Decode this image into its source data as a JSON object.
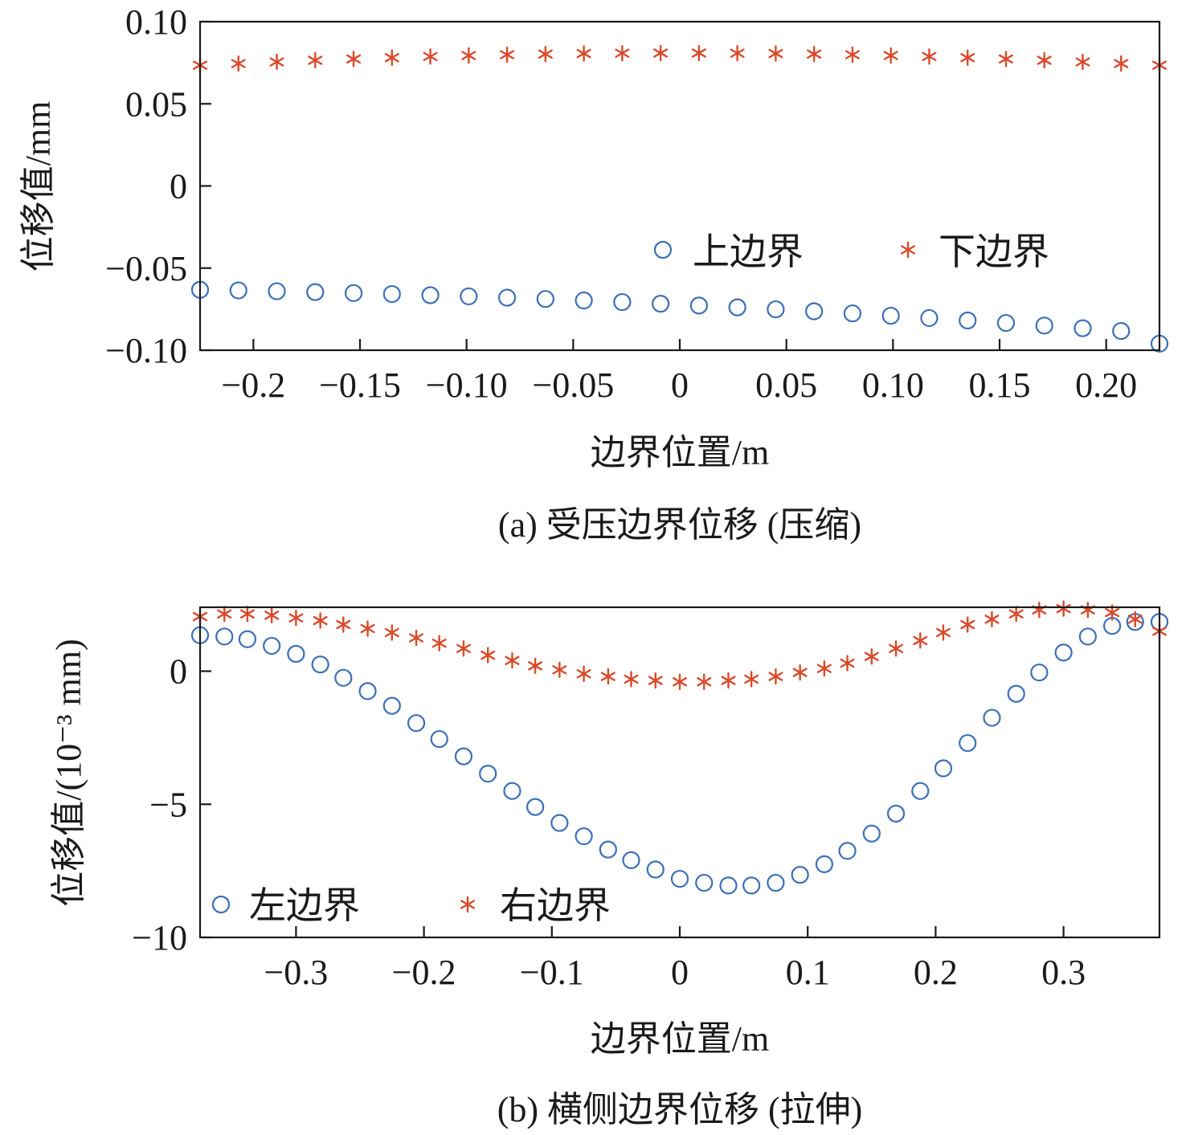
{
  "chart_data": [
    {
      "type": "scatter",
      "caption": "(a) 受压边界位移 (压缩)",
      "xlabel": "边界位置/m",
      "ylabel": "位移值/mm",
      "xlim": [
        -0.225,
        0.225
      ],
      "ylim": [
        -0.1,
        0.1
      ],
      "xticks": [
        -0.2,
        -0.15,
        -0.1,
        -0.05,
        0,
        0.05,
        0.1,
        0.15,
        0.2
      ],
      "xtick_labels": [
        "−0.2",
        "−0.15",
        "−0.10",
        "−0.05",
        "0",
        "0.05",
        "0.10",
        "0.15",
        "0.20"
      ],
      "yticks": [
        0.1,
        0.05,
        0,
        -0.05,
        -0.1
      ],
      "ytick_labels": [
        "0.10",
        "0.05",
        "0",
        "−0.05",
        "−0.10"
      ],
      "legend_position": "center-right",
      "series": [
        {
          "name": "上边界",
          "marker": "circle",
          "color": "#3a6fb7",
          "x": [
            -0.225,
            -0.207,
            -0.189,
            -0.171,
            -0.153,
            -0.135,
            -0.117,
            -0.099,
            -0.081,
            -0.063,
            -0.045,
            -0.027,
            -0.009,
            0.009,
            0.027,
            0.045,
            0.063,
            0.081,
            0.099,
            0.117,
            0.135,
            0.153,
            0.171,
            0.189,
            0.207,
            0.225
          ],
          "values": [
            -0.0632,
            -0.0636,
            -0.0641,
            -0.0646,
            -0.0652,
            -0.0658,
            -0.0665,
            -0.0672,
            -0.068,
            -0.0688,
            -0.0697,
            -0.0707,
            -0.0717,
            -0.0728,
            -0.0739,
            -0.0751,
            -0.0763,
            -0.0776,
            -0.079,
            -0.0804,
            -0.0819,
            -0.0834,
            -0.085,
            -0.0866,
            -0.0883,
            -0.096
          ]
        },
        {
          "name": "下边界",
          "marker": "star",
          "color": "#d9492a",
          "x": [
            -0.225,
            -0.207,
            -0.189,
            -0.171,
            -0.153,
            -0.135,
            -0.117,
            -0.099,
            -0.081,
            -0.063,
            -0.045,
            -0.027,
            -0.009,
            0.009,
            0.027,
            0.045,
            0.063,
            0.081,
            0.099,
            0.117,
            0.135,
            0.153,
            0.171,
            0.189,
            0.207,
            0.225
          ],
          "values": [
            0.0735,
            0.0745,
            0.0755,
            0.0765,
            0.0773,
            0.0781,
            0.0788,
            0.0794,
            0.0799,
            0.0803,
            0.0806,
            0.0808,
            0.0809,
            0.0809,
            0.0808,
            0.0806,
            0.0803,
            0.0799,
            0.0794,
            0.0788,
            0.0781,
            0.0773,
            0.0765,
            0.0755,
            0.0745,
            0.0735
          ]
        }
      ]
    },
    {
      "type": "scatter",
      "caption": "(b) 横侧边界位移 (拉伸)",
      "xlabel": "边界位置/m",
      "ylabel": "位移值/(10⁻³ mm)",
      "xlim": [
        -0.375,
        0.375
      ],
      "ylim": [
        -10,
        2.4
      ],
      "xticks": [
        -0.3,
        -0.2,
        -0.1,
        0,
        0.1,
        0.2,
        0.3
      ],
      "xtick_labels": [
        "−0.3",
        "−0.2",
        "−0.1",
        "0",
        "0.1",
        "0.2",
        "0.3"
      ],
      "yticks": [
        0,
        -5,
        -10
      ],
      "ytick_labels": [
        "0",
        "−5",
        "−10"
      ],
      "legend_position": "bottom-left",
      "series": [
        {
          "name": "左边界",
          "marker": "circle",
          "color": "#3a6fb7",
          "x": [
            -0.375,
            -0.356,
            -0.338,
            -0.319,
            -0.3,
            -0.281,
            -0.263,
            -0.244,
            -0.225,
            -0.206,
            -0.188,
            -0.169,
            -0.15,
            -0.131,
            -0.113,
            -0.094,
            -0.075,
            -0.056,
            -0.038,
            -0.019,
            0.0,
            0.019,
            0.038,
            0.056,
            0.075,
            0.094,
            0.113,
            0.131,
            0.15,
            0.169,
            0.188,
            0.206,
            0.225,
            0.244,
            0.263,
            0.281,
            0.3,
            0.319,
            0.338,
            0.356,
            0.375
          ],
          "values": [
            1.35,
            1.3,
            1.2,
            0.95,
            0.65,
            0.25,
            -0.25,
            -0.75,
            -1.3,
            -1.95,
            -2.55,
            -3.2,
            -3.85,
            -4.5,
            -5.1,
            -5.7,
            -6.2,
            -6.7,
            -7.1,
            -7.45,
            -7.8,
            -7.95,
            -8.05,
            -8.05,
            -7.95,
            -7.65,
            -7.25,
            -6.75,
            -6.1,
            -5.35,
            -4.5,
            -3.65,
            -2.7,
            -1.75,
            -0.85,
            -0.05,
            0.7,
            1.3,
            1.7,
            1.85,
            1.85
          ]
        },
        {
          "name": "右边界",
          "marker": "star",
          "color": "#d9492a",
          "x": [
            -0.375,
            -0.356,
            -0.338,
            -0.319,
            -0.3,
            -0.281,
            -0.263,
            -0.244,
            -0.225,
            -0.206,
            -0.188,
            -0.169,
            -0.15,
            -0.131,
            -0.113,
            -0.094,
            -0.075,
            -0.056,
            -0.038,
            -0.019,
            0.0,
            0.019,
            0.038,
            0.056,
            0.075,
            0.094,
            0.113,
            0.131,
            0.15,
            0.169,
            0.188,
            0.206,
            0.225,
            0.244,
            0.263,
            0.281,
            0.3,
            0.319,
            0.338,
            0.356,
            0.375
          ],
          "values": [
            2.05,
            2.15,
            2.15,
            2.1,
            2.0,
            1.9,
            1.75,
            1.6,
            1.45,
            1.25,
            1.05,
            0.85,
            0.6,
            0.4,
            0.2,
            0.05,
            -0.1,
            -0.2,
            -0.3,
            -0.35,
            -0.4,
            -0.4,
            -0.35,
            -0.3,
            -0.2,
            -0.05,
            0.1,
            0.3,
            0.55,
            0.85,
            1.15,
            1.45,
            1.75,
            1.95,
            2.15,
            2.3,
            2.35,
            2.3,
            2.2,
            1.95,
            1.5
          ]
        }
      ]
    }
  ]
}
